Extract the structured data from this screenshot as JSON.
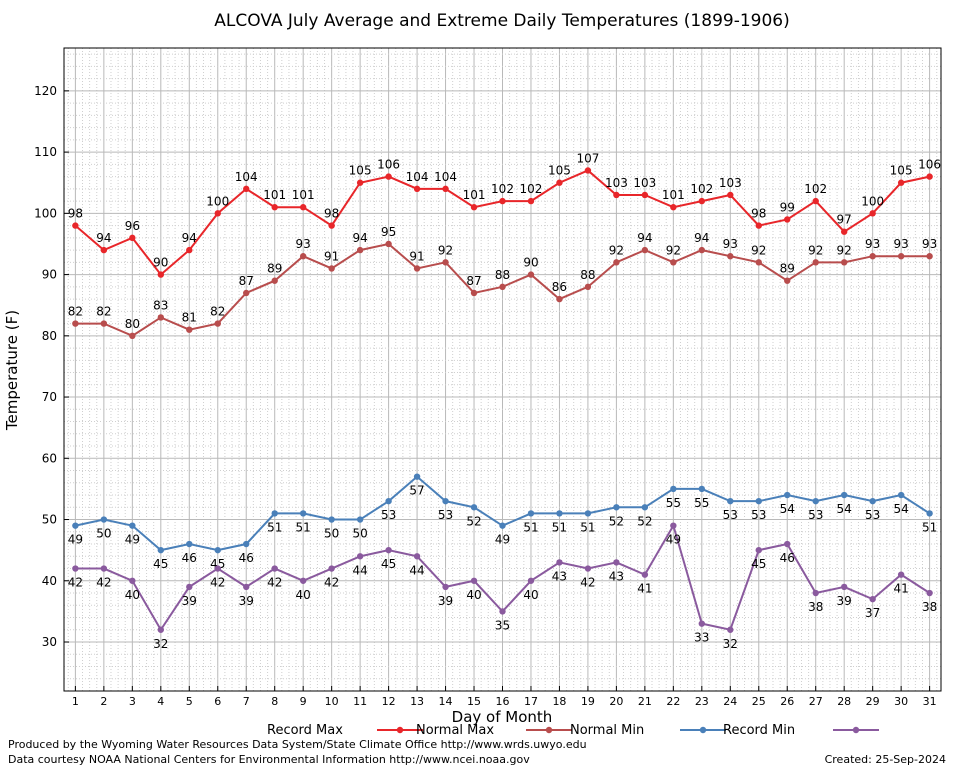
{
  "chart_data": {
    "type": "line",
    "title": "ALCOVA July Average and Extreme Daily Temperatures (1899-1906)",
    "xlabel": "Day of Month",
    "ylabel": "Temperature (F)",
    "xlim": [
      0.6,
      31.4
    ],
    "ylim": [
      22,
      127
    ],
    "yticks": [
      30,
      40,
      50,
      60,
      70,
      80,
      90,
      100,
      110,
      120
    ],
    "x": [
      1,
      2,
      3,
      4,
      5,
      6,
      7,
      8,
      9,
      10,
      11,
      12,
      13,
      14,
      15,
      16,
      17,
      18,
      19,
      20,
      21,
      22,
      23,
      24,
      25,
      26,
      27,
      28,
      29,
      30,
      31
    ],
    "x_tick_labels": [
      "1",
      "2",
      "3",
      "4",
      "5",
      "6",
      "7",
      "8",
      "9",
      "10",
      "11",
      "12",
      "13",
      "14",
      "15",
      "16",
      "17",
      "18",
      "19",
      "20",
      "21",
      "22",
      "23",
      "24",
      "25",
      "26",
      "27",
      "28",
      "29",
      "30",
      "31"
    ],
    "y_tick_labels": [
      "30",
      "40",
      "50",
      "60",
      "70",
      "80",
      "90",
      "100",
      "110",
      "120"
    ],
    "grid": true,
    "legend": "bottom",
    "series": [
      {
        "name": "Record Max",
        "color": "#e8262a",
        "label_pos": "above",
        "values": [
          98,
          94,
          96,
          90,
          94,
          100,
          104,
          101,
          101,
          98,
          105,
          106,
          104,
          104,
          101,
          102,
          102,
          105,
          107,
          103,
          103,
          101,
          102,
          103,
          98,
          99,
          102,
          97,
          100,
          105,
          106
        ],
        "labels": [
          "98",
          "94",
          "96",
          "90",
          "94",
          "100",
          "104",
          "101",
          "101",
          "98",
          "105",
          "106",
          "104",
          "104",
          "101",
          "102",
          "102",
          "105",
          "107",
          "103",
          "103",
          "101",
          "102",
          "103",
          "98",
          "99",
          "102",
          "97",
          "100",
          "105",
          "106"
        ]
      },
      {
        "name": "Normal Max",
        "color": "#b84d4d",
        "label_pos": "above",
        "values": [
          82,
          82,
          80,
          83,
          81,
          82,
          87,
          89,
          93,
          91,
          94,
          95,
          91,
          92,
          87,
          88,
          90,
          86,
          88,
          92,
          94,
          92,
          94,
          93,
          92,
          89,
          92,
          92,
          93,
          93,
          93
        ],
        "labels": [
          "82",
          "82",
          "80",
          "83",
          "81",
          "82",
          "87",
          "89",
          "93",
          "91",
          "94",
          "95",
          "91",
          "92",
          "87",
          "88",
          "90",
          "86",
          "88",
          "92",
          "94",
          "92",
          "94",
          "93",
          "92",
          "89",
          "92",
          "92",
          "93",
          "93",
          "93"
        ]
      },
      {
        "name": "Normal Min",
        "color": "#4a80b9",
        "label_pos": "below",
        "values": [
          49,
          50,
          49,
          45,
          46,
          45,
          46,
          51,
          51,
          50,
          50,
          53,
          57,
          53,
          52,
          49,
          51,
          51,
          51,
          52,
          52,
          55,
          55,
          53,
          53,
          54,
          53,
          54,
          53,
          54,
          51
        ],
        "labels": [
          "49",
          "50",
          "49",
          "45",
          "46",
          "45",
          "46",
          "51",
          "51",
          "50",
          "50",
          "53",
          "57",
          "53",
          "52",
          "49",
          "51",
          "51",
          "51",
          "52",
          "52",
          "55",
          "55",
          "53",
          "53",
          "54",
          "53",
          "54",
          "53",
          "54",
          "51"
        ]
      },
      {
        "name": "Record Min",
        "color": "#8a5a9e",
        "label_pos": "below",
        "values": [
          42,
          42,
          40,
          32,
          39,
          42,
          39,
          42,
          40,
          42,
          44,
          45,
          44,
          39,
          40,
          35,
          40,
          43,
          42,
          43,
          41,
          49,
          33,
          32,
          45,
          46,
          38,
          39,
          37,
          41,
          38
        ],
        "labels": [
          "42",
          "42",
          "40",
          "32",
          "39",
          "42",
          "39",
          "42",
          "40",
          "42",
          "44",
          "45",
          "44",
          "39",
          "40",
          "35",
          "40",
          "43",
          "42",
          "43",
          "41",
          "49",
          "33",
          "32",
          "45",
          "46",
          "38",
          "39",
          "37",
          "41",
          "38"
        ]
      }
    ]
  },
  "footer": {
    "produced_by": "Produced by the Wyoming Water Resources Data System/State Climate Office http://www.wrds.uwyo.edu",
    "courtesy": "Data courtesy NOAA National Centers for Environmental Information http://www.ncei.noaa.gov",
    "created": "Created:  25-Sep-2024"
  }
}
